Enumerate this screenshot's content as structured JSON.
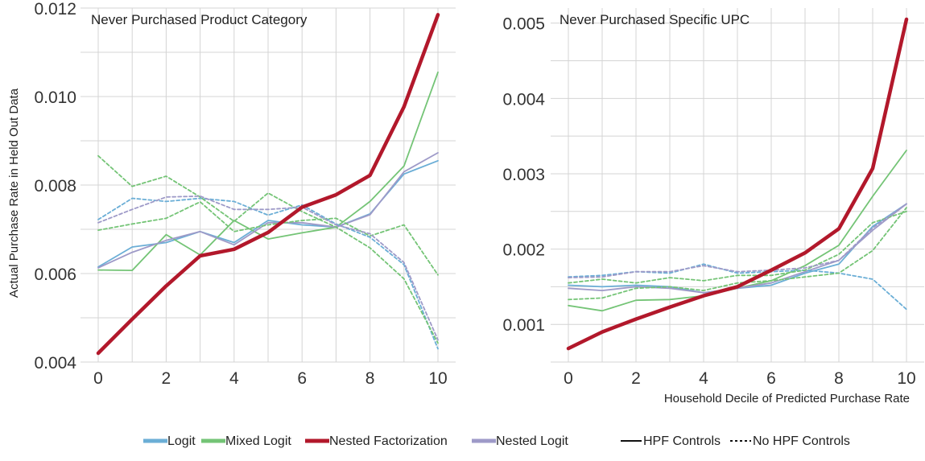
{
  "legend": {
    "models": [
      {
        "name": "Logit",
        "color": "#6BAED6"
      },
      {
        "name": "Mixed Logit",
        "color": "#74C476"
      },
      {
        "name": "Nested Factorization",
        "color": "#B2182B"
      },
      {
        "name": "Nested Logit",
        "color": "#9E9AC8"
      }
    ],
    "styles": [
      {
        "name": "HPF Controls",
        "dash": "solid"
      },
      {
        "name": "No HPF Controls",
        "dash": "dashed"
      }
    ]
  },
  "chart_data": [
    {
      "type": "line",
      "title": "Never Purchased Product Category",
      "xlabel": "",
      "ylabel": "Actual Purchase Rate in Held Out Data",
      "xlim": [
        0,
        10
      ],
      "ylim": [
        0.004,
        0.012
      ],
      "xticks": [
        0,
        2,
        4,
        6,
        8,
        10
      ],
      "yticks": [
        "0.004",
        "0.006",
        "0.008",
        "0.010",
        "0.012"
      ],
      "grid": true,
      "x": [
        0,
        1,
        2,
        3,
        4,
        5,
        6,
        7,
        8,
        9,
        10
      ],
      "series": [
        {
          "name": "Logit",
          "controls": "HPF Controls",
          "values": [
            0.00615,
            0.0066,
            0.0067,
            0.00695,
            0.0067,
            0.0072,
            0.0071,
            0.00705,
            0.00735,
            0.00825,
            0.00855
          ]
        },
        {
          "name": "Mixed Logit",
          "controls": "HPF Controls",
          "values": [
            0.00608,
            0.00607,
            0.00688,
            0.00642,
            0.0072,
            0.00678,
            0.00692,
            0.00705,
            0.00763,
            0.00843,
            0.01055
          ]
        },
        {
          "name": "Nested Logit",
          "controls": "HPF Controls",
          "values": [
            0.00613,
            0.00648,
            0.00675,
            0.00695,
            0.00665,
            0.00715,
            0.00715,
            0.00705,
            0.00733,
            0.0083,
            0.00873
          ]
        },
        {
          "name": "Logit",
          "controls": "No HPF Controls",
          "values": [
            0.00722,
            0.0077,
            0.00763,
            0.0077,
            0.00763,
            0.00732,
            0.00755,
            0.00712,
            0.00682,
            0.0062,
            0.0043
          ]
        },
        {
          "name": "Mixed Logit",
          "controls": "No HPF Controls",
          "values": [
            0.00866,
            0.00797,
            0.0082,
            0.00773,
            0.00718,
            0.00782,
            0.0074,
            0.00705,
            0.00658,
            0.00588,
            0.00443
          ]
        },
        {
          "name": "Mixed Logit",
          "controls": "No HPF Controls",
          "values": [
            0.00698,
            0.00712,
            0.00725,
            0.00762,
            0.00695,
            0.0071,
            0.0072,
            0.00725,
            0.00685,
            0.0071,
            0.00597
          ]
        },
        {
          "name": "Nested Logit",
          "controls": "No HPF Controls",
          "values": [
            0.00715,
            0.00745,
            0.00773,
            0.00775,
            0.00745,
            0.00745,
            0.0075,
            0.0071,
            0.0069,
            0.00625,
            0.0045
          ]
        },
        {
          "name": "Nested Factorization",
          "controls": "HPF Controls",
          "values": [
            0.0042,
            0.00497,
            0.00572,
            0.0064,
            0.00655,
            0.00693,
            0.0075,
            0.00778,
            0.00822,
            0.00977,
            0.01185
          ]
        }
      ]
    },
    {
      "type": "line",
      "title": "Never Purchased Specific UPC",
      "xlabel": "Household Decile of Predicted Purchase Rate",
      "ylabel": "",
      "xlim": [
        0,
        10
      ],
      "ylim": [
        0.0005,
        0.0052
      ],
      "xticks": [
        0,
        2,
        4,
        6,
        8,
        10
      ],
      "yticks": [
        "0.001",
        "0.002",
        "0.003",
        "0.004",
        "0.005"
      ],
      "grid": true,
      "x": [
        0,
        1,
        2,
        3,
        4,
        5,
        6,
        7,
        8,
        9,
        10
      ],
      "series": [
        {
          "name": "Logit",
          "controls": "HPF Controls",
          "values": [
            0.00152,
            0.0015,
            0.00152,
            0.0015,
            0.00142,
            0.00148,
            0.00152,
            0.00168,
            0.0018,
            0.0023,
            0.0026
          ]
        },
        {
          "name": "Mixed Logit",
          "controls": "HPF Controls",
          "values": [
            0.00125,
            0.00118,
            0.00132,
            0.00133,
            0.00138,
            0.00148,
            0.00158,
            0.00178,
            0.00205,
            0.0027,
            0.00331
          ]
        },
        {
          "name": "Nested Logit",
          "controls": "HPF Controls",
          "values": [
            0.00148,
            0.00145,
            0.0015,
            0.00148,
            0.00142,
            0.00148,
            0.00155,
            0.0017,
            0.00185,
            0.00225,
            0.0026
          ]
        },
        {
          "name": "Logit",
          "controls": "No HPF Controls",
          "values": [
            0.00163,
            0.00165,
            0.0017,
            0.00168,
            0.0018,
            0.00168,
            0.0017,
            0.00172,
            0.00168,
            0.0016,
            0.0012
          ]
        },
        {
          "name": "Mixed Logit",
          "controls": "No HPF Controls",
          "values": [
            0.00133,
            0.00135,
            0.00148,
            0.0015,
            0.00145,
            0.00155,
            0.00158,
            0.00163,
            0.00168,
            0.00198,
            0.00255
          ]
        },
        {
          "name": "Mixed Logit",
          "controls": "No HPF Controls",
          "values": [
            0.00155,
            0.0016,
            0.00155,
            0.00162,
            0.00158,
            0.00165,
            0.00165,
            0.00172,
            0.00193,
            0.00235,
            0.0025
          ]
        },
        {
          "name": "Nested Logit",
          "controls": "No HPF Controls",
          "values": [
            0.00162,
            0.00163,
            0.0017,
            0.0017,
            0.00178,
            0.0017,
            0.00172,
            0.00175,
            0.00185,
            0.00228,
            0.0026
          ]
        },
        {
          "name": "Nested Factorization",
          "controls": "HPF Controls",
          "values": [
            0.00068,
            0.0009,
            0.00107,
            0.00123,
            0.00138,
            0.0015,
            0.00172,
            0.00195,
            0.00227,
            0.00307,
            0.00505
          ]
        }
      ]
    }
  ]
}
